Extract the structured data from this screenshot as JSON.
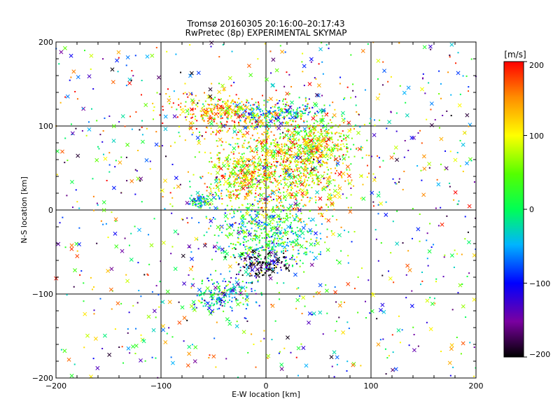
{
  "chart_data": {
    "type": "scatter",
    "title": "Tromsø 20160305 20:16:00–20:17:43",
    "subtitle": "RwPretec (8p) EXPERIMENTAL SKYMAP",
    "xlabel": "E-W location [km]",
    "ylabel": "N-S location [km]",
    "xlim": [
      -200,
      200
    ],
    "ylim": [
      -200,
      200
    ],
    "xticks": [
      "−200",
      "−100",
      "0",
      "100",
      "200"
    ],
    "yticks": [
      "−200",
      "−100",
      "0",
      "100",
      "200"
    ],
    "grid": true,
    "colorbar": {
      "label": "[m/s]",
      "range": [
        -200,
        200
      ],
      "ticks": [
        "200",
        "100",
        "0",
        "−100",
        "−200"
      ],
      "colormap": "rainbow: black (-200) → purple → blue → cyan → green (0) → yellow → orange → red (200)"
    },
    "marker_types": [
      "dot",
      "x"
    ],
    "clusters": [
      {
        "x": 0,
        "y": -30,
        "velocity": 0,
        "spread_x": 25,
        "spread_y": 22
      },
      {
        "x": 12,
        "y": 115,
        "velocity": -30,
        "spread_x": 25,
        "spread_y": 8
      },
      {
        "x": -45,
        "y": 115,
        "velocity": 130,
        "spread_x": 25,
        "spread_y": 12
      },
      {
        "x": 50,
        "y": 80,
        "velocity": 70,
        "spread_x": 20,
        "spread_y": 12
      },
      {
        "x": -40,
        "y": -100,
        "velocity": -40,
        "spread_x": 15,
        "spread_y": 10
      },
      {
        "x": -63,
        "y": 10,
        "velocity": -60,
        "spread_x": 5,
        "spread_y": 4
      },
      {
        "x": -20,
        "y": 40,
        "velocity": 90,
        "spread_x": 18,
        "spread_y": 18
      },
      {
        "x": 25,
        "y": 50,
        "velocity": 110,
        "spread_x": 30,
        "spread_y": 30
      },
      {
        "x": -5,
        "y": -65,
        "velocity": -200,
        "spread_x": 12,
        "spread_y": 8
      }
    ],
    "background_points": {
      "count": 950,
      "x_range": [
        -200,
        200
      ],
      "y_range": [
        -200,
        200
      ],
      "velocity_range": [
        -200,
        200
      ]
    }
  }
}
